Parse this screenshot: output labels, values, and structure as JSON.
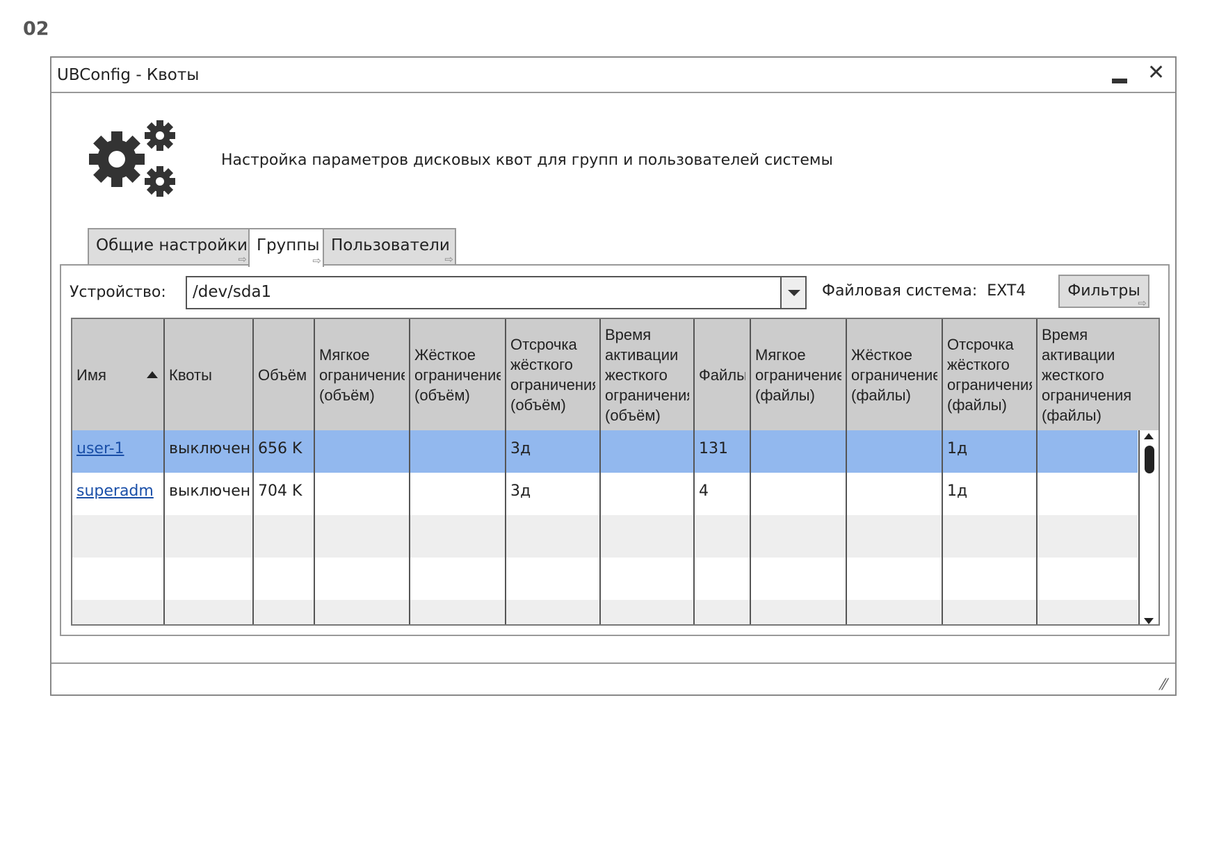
{
  "page_label": "02",
  "window": {
    "title": "UBConfig - Квоты",
    "minimize_icon": "minimize-icon",
    "close_icon": "close-icon",
    "close_glyph": "✕"
  },
  "header": {
    "icon": "gears-icon",
    "description": "Настройка параметров дисковых квот для групп и пользователей системы"
  },
  "tabs": [
    {
      "label": "Общие настройки",
      "active": false
    },
    {
      "label": "Группы",
      "active": true
    },
    {
      "label": "Пользователи",
      "active": false
    }
  ],
  "device": {
    "label": "Устройство:",
    "value": "/dev/sda1"
  },
  "filesystem": {
    "label": "Файловая система:",
    "value": "EXT4"
  },
  "filter_button": "Фильтры",
  "table": {
    "sort_column": "Имя",
    "sort_direction": "ascending",
    "columns": [
      "Имя",
      "Квоты",
      "Объём",
      "Мягкое ограничение (объём)",
      "Жёсткое ограничение (объём)",
      "Отсрочка жёсткого ограничения (объём)",
      "Время активации жесткого ограничения (объём)",
      "Файлы",
      "Мягкое ограничение (файлы)",
      "Жёсткое ограничение (файлы)",
      "Отсрочка жёсткого ограничения (файлы)",
      "Время активации жесткого ограничения (файлы)"
    ],
    "header_lines": [
      [
        "Имя"
      ],
      [
        "Квоты"
      ],
      [
        "Объём"
      ],
      [
        "Мягкое",
        "ограничени",
        "(объём)"
      ],
      [
        "Жёсткое",
        "ограничени",
        "(объём)"
      ],
      [
        "Отсрочка",
        "жёсткого",
        "ограничени",
        "(объём)"
      ],
      [
        "Время",
        "активации",
        "жесткого",
        "ограничени",
        "(объём)"
      ],
      [
        "Файлы"
      ],
      [
        "Мягкое",
        "ограничени",
        "(файлы)"
      ],
      [
        "Жёсткое",
        "ограничени",
        "(файлы)"
      ],
      [
        "Отсрочка",
        "жёсткого",
        "ограничени",
        "(файлы)"
      ],
      [
        "Время",
        "активации",
        "жесткого",
        "ограничени",
        "(файлы)"
      ]
    ],
    "rows": [
      [
        "user-1",
        "выключен",
        "656 K",
        "",
        "",
        "3д",
        "",
        "131",
        "",
        "",
        "1д",
        ""
      ],
      [
        "superadm",
        "выключен",
        "704 K",
        "",
        "",
        "3д",
        "",
        "4",
        "",
        "",
        "1д",
        ""
      ]
    ],
    "selected_row": 0
  },
  "colors": {
    "selected_row": "#92b8ee",
    "header_bg": "#cccccc",
    "stripe": "#eeeeee",
    "link": "#1a4fa8"
  }
}
